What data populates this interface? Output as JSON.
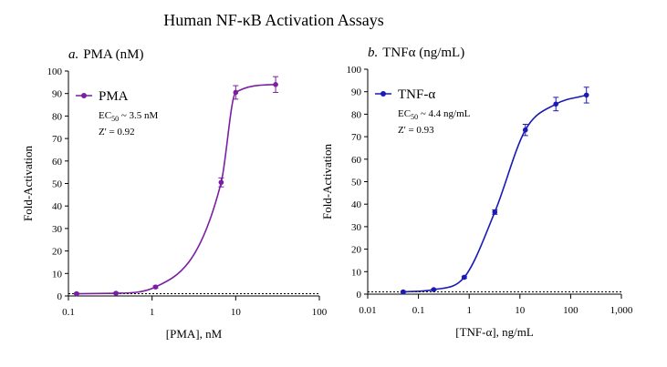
{
  "figure_title": "Human NF-κB Activation Assays",
  "chart_data": [
    {
      "type": "line",
      "panel_label": "a.",
      "title": "PMA (nM)",
      "x_label": "[PMA], nM",
      "y_label": "Fold-Activation",
      "xscale": "log",
      "x": [
        0.125,
        0.37,
        1.1,
        6.7,
        10,
        30
      ],
      "series": [
        {
          "name": "PMA",
          "color": "#7b1fa2",
          "values": [
            1,
            1.2,
            4,
            50.5,
            90.5,
            94
          ],
          "errors": [
            0.3,
            0.3,
            0.5,
            2,
            3,
            3.5
          ]
        }
      ],
      "xlim": [
        0.1,
        100
      ],
      "ylim": [
        0,
        100
      ],
      "xticks": [
        0.1,
        1,
        10,
        100
      ],
      "yticks": [
        0,
        10,
        20,
        30,
        40,
        50,
        60,
        70,
        80,
        90,
        100
      ],
      "baseline": 1,
      "legend": "upper left",
      "annotations": [
        {
          "text": "EC",
          "sub": "50",
          "tail": " ~ 3.5 nM"
        },
        {
          "text": "Z' = 0.92"
        }
      ]
    },
    {
      "type": "line",
      "panel_label": "b.",
      "title": "TNFα (ng/mL)",
      "x_label": "[TNF-α], ng/mL",
      "y_label": "Fold-Activation",
      "xscale": "log",
      "x": [
        0.05,
        0.2,
        0.8,
        3.2,
        12.8,
        51.2,
        204.8
      ],
      "series": [
        {
          "name": "TNF-α",
          "color": "#1a1ab4",
          "values": [
            1,
            2,
            7.5,
            36.5,
            73,
            84.5,
            88.5
          ],
          "errors": [
            0.3,
            0.3,
            0.5,
            1,
            2.5,
            3,
            3.5
          ]
        }
      ],
      "xlim": [
        0.01,
        1000
      ],
      "ylim": [
        0,
        100
      ],
      "xticks": [
        0.01,
        0.1,
        1,
        10,
        100,
        {
          "value": 1000,
          "label": "1,000"
        }
      ],
      "yticks": [
        0,
        10,
        20,
        30,
        40,
        50,
        60,
        70,
        80,
        90,
        100
      ],
      "baseline": 1,
      "legend": "upper left",
      "annotations": [
        {
          "text": "EC",
          "sub": "50",
          "tail": " ~ 4.4 ng/mL"
        },
        {
          "text": "Z' = 0.93"
        }
      ]
    }
  ]
}
